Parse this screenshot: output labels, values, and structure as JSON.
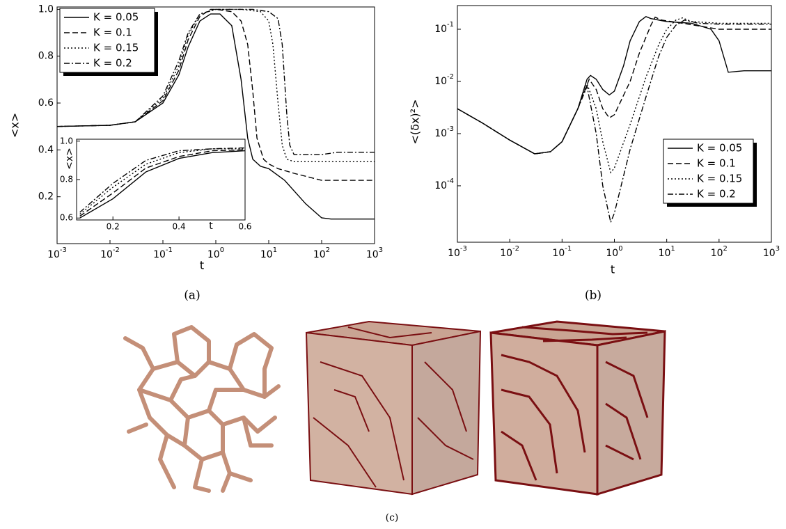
{
  "chart_data": [
    {
      "type": "line",
      "ylabel": "<x>",
      "xlabel": "t",
      "xscale": "log",
      "legend": "upper left",
      "xlim": [
        0.001,
        1000
      ],
      "ylim": [
        0,
        1.01
      ],
      "xticks": [
        {
          "value": 0.001,
          "label": "10-3"
        },
        {
          "value": 0.01,
          "label": "10-2"
        },
        {
          "value": 0.1,
          "label": "10-1"
        },
        {
          "value": 1,
          "label": "100"
        },
        {
          "value": 10,
          "label": "101"
        },
        {
          "value": 100,
          "label": "102"
        },
        {
          "value": 1000,
          "label": "103"
        }
      ],
      "yticks": [
        0.2,
        0.4,
        0.6,
        0.8,
        {
          "value": 1,
          "label": "1.0"
        }
      ],
      "series": [
        {
          "name": "K = 0.05",
          "color": "#000",
          "style": "solid",
          "x": [
            0.001,
            0.01,
            0.03,
            0.1,
            0.2,
            0.3,
            0.5,
            0.8,
            1.2,
            2,
            3,
            4,
            5,
            7,
            10,
            20,
            50,
            100,
            150,
            1000
          ],
          "values": [
            0.5,
            0.505,
            0.52,
            0.6,
            0.72,
            0.84,
            0.95,
            0.98,
            0.98,
            0.93,
            0.7,
            0.45,
            0.36,
            0.33,
            0.32,
            0.27,
            0.17,
            0.11,
            0.105,
            0.105
          ]
        },
        {
          "name": "K = 0.1",
          "color": "#000",
          "style": "dashed",
          "x": [
            0.001,
            0.01,
            0.03,
            0.1,
            0.2,
            0.3,
            0.5,
            0.8,
            1,
            2,
            3,
            4,
            5,
            6,
            8,
            10,
            15,
            30,
            100,
            200,
            1000
          ],
          "values": [
            0.5,
            0.505,
            0.52,
            0.61,
            0.74,
            0.87,
            0.97,
            1.0,
            1.0,
            0.99,
            0.95,
            0.85,
            0.65,
            0.45,
            0.36,
            0.34,
            0.32,
            0.3,
            0.27,
            0.27,
            0.27
          ]
        },
        {
          "name": "K = 0.15",
          "color": "#000",
          "style": "dotted",
          "x": [
            0.001,
            0.01,
            0.03,
            0.1,
            0.2,
            0.3,
            0.5,
            1,
            3,
            7,
            10,
            12,
            15,
            18,
            22,
            30,
            100,
            1000
          ],
          "values": [
            0.5,
            0.505,
            0.52,
            0.62,
            0.76,
            0.89,
            0.98,
            1.0,
            1.0,
            0.99,
            0.95,
            0.85,
            0.6,
            0.42,
            0.36,
            0.35,
            0.35,
            0.35
          ]
        },
        {
          "name": "K = 0.2",
          "color": "#000",
          "style": "dashdot",
          "x": [
            0.001,
            0.01,
            0.03,
            0.1,
            0.2,
            0.3,
            0.5,
            1,
            5,
            10,
            15,
            18,
            22,
            25,
            30,
            60,
            100,
            200,
            1000
          ],
          "values": [
            0.5,
            0.505,
            0.52,
            0.63,
            0.78,
            0.9,
            0.98,
            1.0,
            1.0,
            0.99,
            0.96,
            0.85,
            0.55,
            0.42,
            0.38,
            0.38,
            0.38,
            0.39,
            0.39
          ]
        }
      ]
    },
    {
      "type": "line",
      "ylabel": "<(δx)²>",
      "xlabel": "t",
      "xscale": "log",
      "yscale": "log",
      "legend": "center right",
      "xlim": [
        0.001,
        1000
      ],
      "ylim": [
        8.3e-06,
        0.284
      ],
      "xticks": [
        {
          "value": 0.001,
          "label": "10-3"
        },
        {
          "value": 0.01,
          "label": "10-2"
        },
        {
          "value": 0.1,
          "label": "10-1"
        },
        {
          "value": 1,
          "label": "100"
        },
        {
          "value": 10,
          "label": "101"
        },
        {
          "value": 100,
          "label": "102"
        },
        {
          "value": 1000,
          "label": "103"
        }
      ],
      "yticks": [
        {
          "value": 0.0001,
          "label": "10-4"
        },
        {
          "value": 0.001,
          "label": "10-3"
        },
        {
          "value": 0.01,
          "label": "10-2"
        },
        {
          "value": 0.1,
          "label": "10-1"
        }
      ],
      "series": [
        {
          "name": "K = 0.05",
          "color": "#000",
          "style": "solid",
          "x": [
            0.001,
            0.003,
            0.01,
            0.03,
            0.06,
            0.1,
            0.2,
            0.3,
            0.35,
            0.45,
            0.6,
            0.8,
            1,
            1.5,
            2,
            3,
            4,
            5,
            10,
            30,
            70,
            100,
            150,
            300,
            1000
          ],
          "values": [
            0.003,
            0.0016,
            0.00075,
            0.00041,
            0.00045,
            0.0007,
            0.003,
            0.011,
            0.013,
            0.011,
            0.007,
            0.0055,
            0.0065,
            0.02,
            0.06,
            0.14,
            0.175,
            0.16,
            0.14,
            0.13,
            0.1,
            0.06,
            0.015,
            0.016,
            0.016
          ]
        },
        {
          "name": "K = 0.1",
          "color": "#000",
          "style": "dashed",
          "x": [
            0.001,
            0.003,
            0.01,
            0.03,
            0.06,
            0.1,
            0.2,
            0.33,
            0.45,
            0.6,
            0.8,
            1,
            2,
            3,
            5,
            6,
            8,
            20,
            100,
            1000
          ],
          "values": [
            0.003,
            0.0016,
            0.00075,
            0.00041,
            0.00045,
            0.0007,
            0.003,
            0.011,
            0.007,
            0.003,
            0.002,
            0.0023,
            0.01,
            0.035,
            0.12,
            0.17,
            0.15,
            0.13,
            0.1,
            0.1
          ]
        },
        {
          "name": "K = 0.15",
          "color": "#000",
          "style": "dotted",
          "x": [
            0.001,
            0.003,
            0.01,
            0.03,
            0.06,
            0.1,
            0.2,
            0.3,
            0.45,
            0.6,
            0.85,
            1,
            2,
            4,
            7,
            10,
            15,
            20,
            30,
            100,
            1000
          ],
          "values": [
            0.003,
            0.0016,
            0.00075,
            0.00041,
            0.00045,
            0.0007,
            0.003,
            0.009,
            0.003,
            0.0007,
            0.00018,
            0.00022,
            0.0015,
            0.012,
            0.05,
            0.1,
            0.15,
            0.165,
            0.14,
            0.13,
            0.13
          ]
        },
        {
          "name": "K = 0.2",
          "color": "#000",
          "style": "dashdot",
          "x": [
            0.001,
            0.003,
            0.01,
            0.03,
            0.06,
            0.1,
            0.2,
            0.3,
            0.45,
            0.6,
            0.85,
            1,
            2,
            4,
            7,
            10,
            15,
            22,
            40,
            100,
            1000
          ],
          "values": [
            0.003,
            0.0016,
            0.00075,
            0.00041,
            0.00045,
            0.0007,
            0.003,
            0.008,
            0.001,
            0.0001,
            2e-05,
            3e-05,
            0.0005,
            0.005,
            0.03,
            0.07,
            0.12,
            0.15,
            0.13,
            0.125,
            0.125
          ]
        }
      ]
    },
    {
      "type": "line",
      "ylabel": "<x>",
      "xlabel": "t",
      "xlim": [
        0.09,
        0.6
      ],
      "ylim": [
        0.59,
        1.01
      ],
      "xticks": [
        0.2,
        0.4,
        0.6
      ],
      "yticks": [
        0.6,
        0.8,
        {
          "value": 1,
          "label": "1.0"
        }
      ],
      "series": [
        {
          "color": "#000",
          "style": "solid",
          "x": [
            0.1,
            0.2,
            0.3,
            0.4,
            0.5,
            0.6
          ],
          "values": [
            0.6,
            0.7,
            0.84,
            0.91,
            0.94,
            0.95
          ]
        },
        {
          "color": "#000",
          "style": "dashed",
          "x": [
            0.1,
            0.2,
            0.3,
            0.4,
            0.5,
            0.6
          ],
          "values": [
            0.61,
            0.73,
            0.86,
            0.92,
            0.95,
            0.955
          ]
        },
        {
          "color": "#000",
          "style": "dotted",
          "x": [
            0.1,
            0.2,
            0.3,
            0.4,
            0.5,
            0.6
          ],
          "values": [
            0.62,
            0.76,
            0.88,
            0.94,
            0.96,
            0.96
          ]
        },
        {
          "color": "#000",
          "style": "dashdot",
          "x": [
            0.1,
            0.2,
            0.3,
            0.4,
            0.5,
            0.6
          ],
          "values": [
            0.63,
            0.78,
            0.9,
            0.95,
            0.96,
            0.965
          ]
        }
      ]
    }
  ],
  "captions": [
    "(a)",
    "(b)",
    "(c)"
  ]
}
